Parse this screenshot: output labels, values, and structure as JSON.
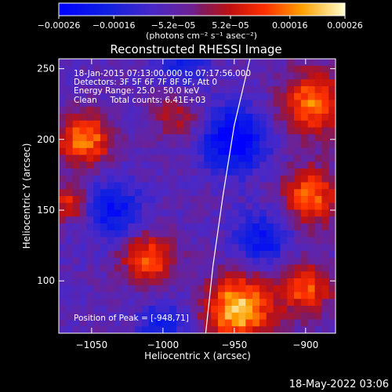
{
  "chart_data": {
    "type": "heatmap",
    "title": "Reconstructed RHESSI Image",
    "xlabel": "Heliocentric X (arcsec)",
    "ylabel": "Heliocentric Y (arcsec)",
    "xlim": [
      -1073,
      -879
    ],
    "ylim": [
      63,
      257
    ],
    "x_ticks": [
      {
        "value": -1050,
        "label": "−1050"
      },
      {
        "value": -1000,
        "label": "−1000"
      },
      {
        "value": -950,
        "label": "−950"
      },
      {
        "value": -900,
        "label": "−900"
      }
    ],
    "y_ticks": [
      {
        "value": 100,
        "label": "100"
      },
      {
        "value": 150,
        "label": "150"
      },
      {
        "value": 200,
        "label": "200"
      },
      {
        "value": 250,
        "label": "250"
      }
    ],
    "colorbar": {
      "range": [
        -0.00026,
        0.00026
      ],
      "unit_label": "(photons cm⁻² s⁻¹ asec⁻²)",
      "ticks": [
        {
          "value": -0.00026,
          "label": "−0.00026"
        },
        {
          "value": -0.00016,
          "label": "−0.00016"
        },
        {
          "value": -5.2e-05,
          "label": "−5.2e−05"
        },
        {
          "value": 5.2e-05,
          "label": "5.2e−05"
        },
        {
          "value": 0.00016,
          "label": "0.00016"
        },
        {
          "value": 0.00026,
          "label": "0.00026"
        }
      ]
    },
    "annotations": [
      "18-Jan-2015 07:13:00.000 to 07:17:56.000",
      "Detectors: 3F 5F 6F 7F 8F 9F, Att 0",
      "Energy Range: 25.0 - 50.0 keV",
      "Clean     Total counts: 6.41E+03"
    ],
    "peak_label": "Position of Peak = [-948,71]",
    "limb_curve": [
      [
        -970,
        63
      ],
      [
        -965,
        110
      ],
      [
        -958,
        160
      ],
      [
        -950,
        210
      ],
      [
        -939,
        257
      ]
    ],
    "sources": [
      {
        "x": -947,
        "y": 80,
        "sigma": 16,
        "amp": 1.0
      },
      {
        "x": -1055,
        "y": 200,
        "sigma": 13,
        "amp": 0.8
      },
      {
        "x": -1065,
        "y": 155,
        "sigma": 9,
        "amp": 0.55
      },
      {
        "x": -1010,
        "y": 115,
        "sigma": 13,
        "amp": 0.7
      },
      {
        "x": -895,
        "y": 225,
        "sigma": 16,
        "amp": 0.75
      },
      {
        "x": -897,
        "y": 160,
        "sigma": 14,
        "amp": 0.7
      },
      {
        "x": -900,
        "y": 95,
        "sigma": 13,
        "amp": 0.65
      },
      {
        "x": -990,
        "y": 215,
        "sigma": 12,
        "amp": 0.35
      },
      {
        "x": -950,
        "y": 200,
        "sigma": 16,
        "amp": -0.75
      },
      {
        "x": -1035,
        "y": 150,
        "sigma": 14,
        "amp": -0.55
      },
      {
        "x": -930,
        "y": 130,
        "sigma": 13,
        "amp": -0.55
      },
      {
        "x": -1000,
        "y": 70,
        "sigma": 12,
        "amp": -0.4
      },
      {
        "x": -985,
        "y": 255,
        "sigma": 12,
        "amp": -0.4
      }
    ]
  },
  "footer": {
    "timestamp": "18-May-2022 03:06"
  }
}
